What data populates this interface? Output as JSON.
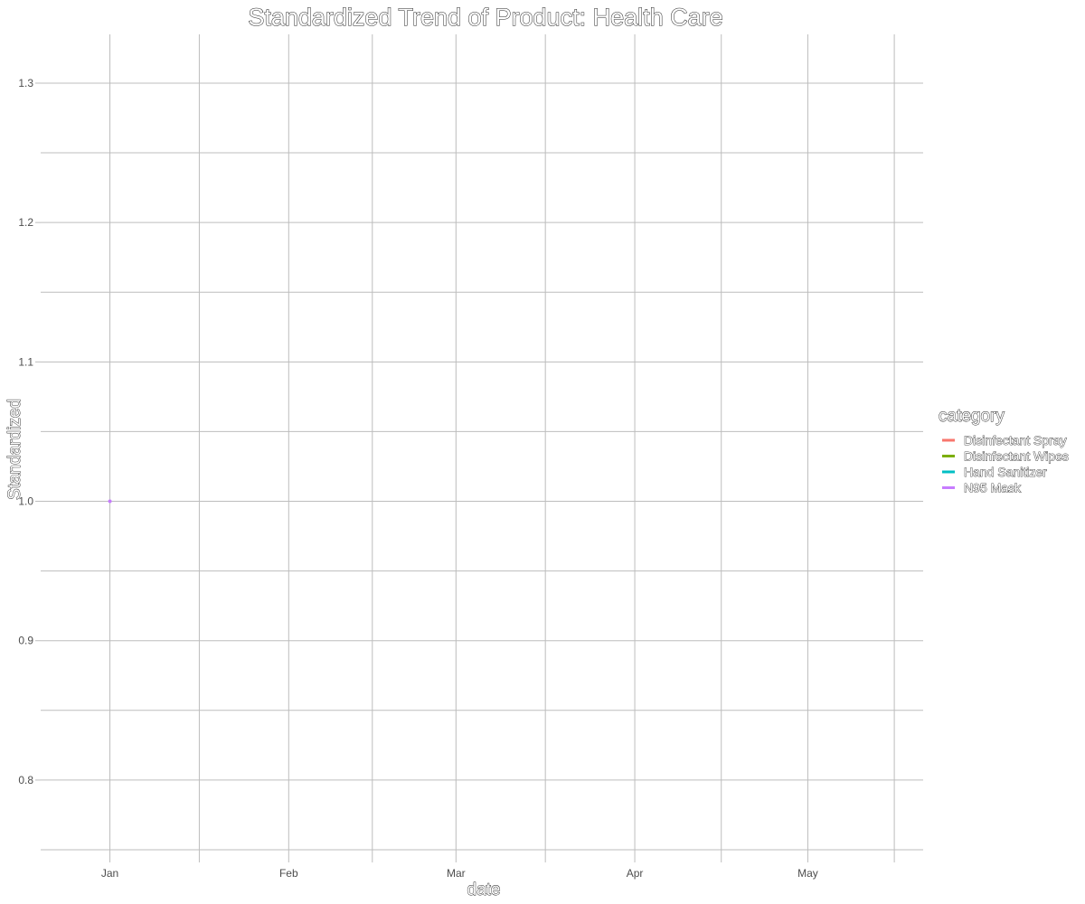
{
  "chart_data": {
    "type": "line",
    "title": "Standardized Trend of Product: Health Care",
    "xlabel": "date",
    "ylabel": "Standardized",
    "x_tick_labels": [
      "Jan",
      "Feb",
      "Mar",
      "Apr",
      "May"
    ],
    "x_tick_dates": [
      "2020-01-01",
      "2020-02-01",
      "2020-03-01",
      "2020-04-01",
      "2020-05-01"
    ],
    "xlim": [
      "2019-12-20",
      "2020-05-21"
    ],
    "y_ticks": [
      "0.8",
      "0.9",
      "1.0",
      "1.1",
      "1.2",
      "1.3"
    ],
    "ylim": [
      0.75,
      1.335
    ],
    "grid": true,
    "legend": {
      "title": "category",
      "position": "right"
    },
    "series": [
      {
        "name": "Disinfectant Spray",
        "color": "#F8766D",
        "points": []
      },
      {
        "name": "Disinfectant Wipes",
        "color": "#7CAE00",
        "points": []
      },
      {
        "name": "Hand Sanitizer",
        "color": "#00BFC4",
        "points": []
      },
      {
        "name": "N95 Mask",
        "color": "#C77CFF",
        "points": [
          {
            "x": "2020-01-01",
            "y": 1.0
          }
        ]
      }
    ]
  }
}
